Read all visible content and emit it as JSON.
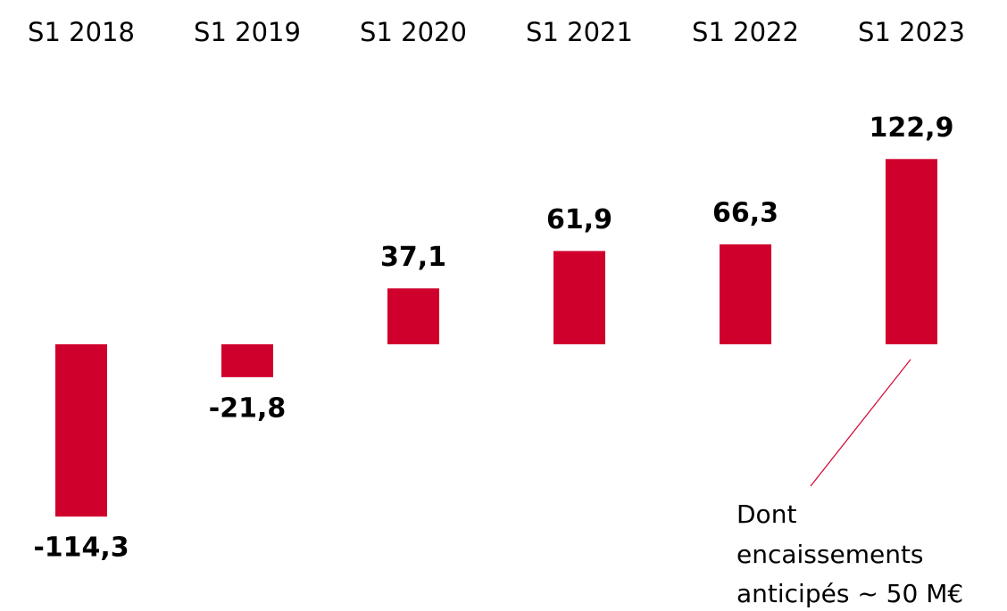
{
  "chart_data": {
    "type": "bar",
    "categories": [
      "S1 2018",
      "S1 2019",
      "S1 2020",
      "S1 2021",
      "S1 2022",
      "S1 2023"
    ],
    "values": [
      -114.3,
      -21.8,
      37.1,
      61.9,
      66.3,
      122.9
    ],
    "value_labels": [
      "-114,3",
      "-21,8",
      "37,1",
      "61,9",
      "66,3",
      "122,9"
    ],
    "color": "#d0002d",
    "annotation": [
      "Dont",
      "encaissements",
      "anticipés ~ 50 M€"
    ]
  }
}
